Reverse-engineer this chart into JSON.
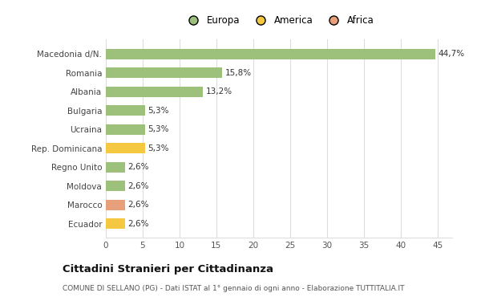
{
  "categories": [
    "Ecuador",
    "Marocco",
    "Moldova",
    "Regno Unito",
    "Rep. Dominicana",
    "Ucraina",
    "Bulgaria",
    "Albania",
    "Romania",
    "Macedonia d/N."
  ],
  "values": [
    2.6,
    2.6,
    2.6,
    2.6,
    5.3,
    5.3,
    5.3,
    13.2,
    15.8,
    44.7
  ],
  "labels": [
    "2,6%",
    "2,6%",
    "2,6%",
    "2,6%",
    "5,3%",
    "5,3%",
    "5,3%",
    "13,2%",
    "15,8%",
    "44,7%"
  ],
  "colors": [
    "#f5c842",
    "#e8a07a",
    "#9dc07a",
    "#9dc07a",
    "#f5c842",
    "#9dc07a",
    "#9dc07a",
    "#9dc07a",
    "#9dc07a",
    "#9dc07a"
  ],
  "legend": [
    {
      "label": "Europa",
      "color": "#9dc07a"
    },
    {
      "label": "America",
      "color": "#f5c842"
    },
    {
      "label": "Africa",
      "color": "#e8a07a"
    }
  ],
  "title": "Cittadini Stranieri per Cittadinanza",
  "subtitle": "COMUNE DI SELLANO (PG) - Dati ISTAT al 1° gennaio di ogni anno - Elaborazione TUTTITALIA.IT",
  "xlim": [
    0,
    47
  ],
  "xticks": [
    0,
    5,
    10,
    15,
    20,
    25,
    30,
    35,
    40,
    45
  ],
  "background_color": "#ffffff",
  "grid_color": "#dddddd",
  "bar_height": 0.55
}
